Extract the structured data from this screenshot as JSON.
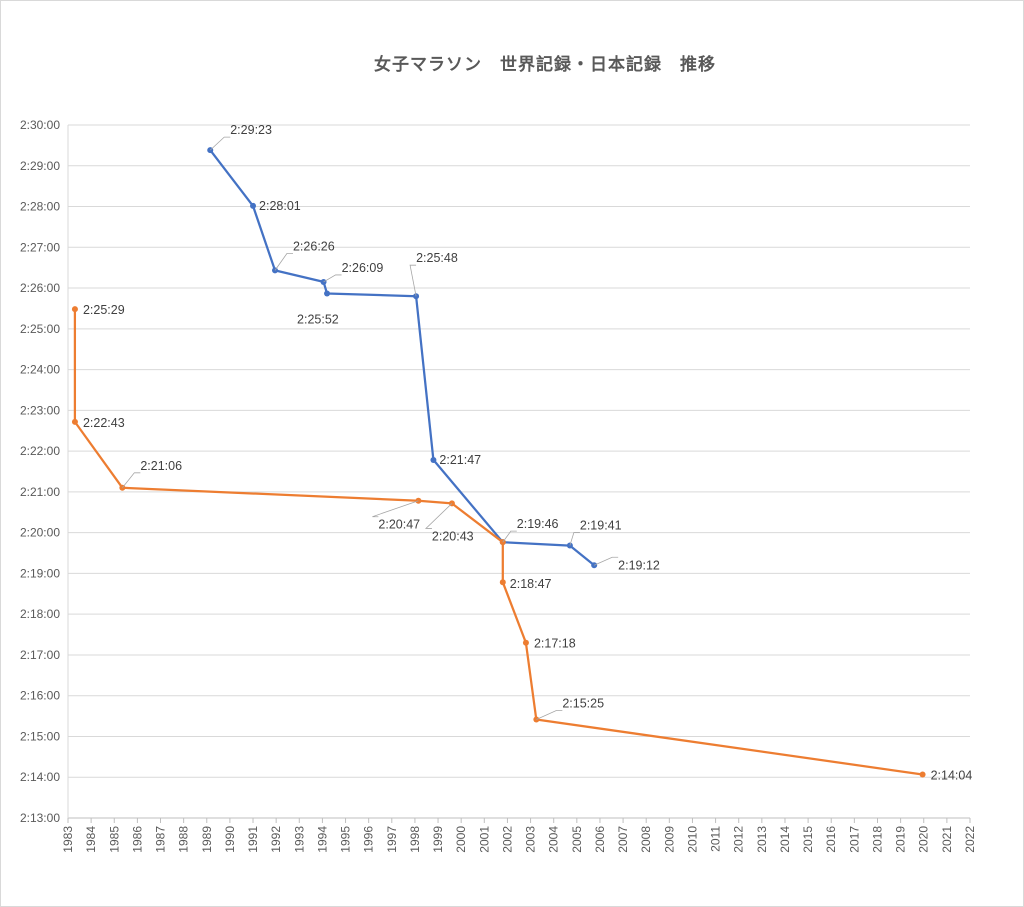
{
  "chart_data": {
    "type": "line",
    "title": "女子マラソン　世界記録・日本記録　推移",
    "xlabel": "",
    "ylabel": "",
    "x_ticks": [
      "1983",
      "1984",
      "1985",
      "1986",
      "1987",
      "1988",
      "1989",
      "1990",
      "1991",
      "1992",
      "1993",
      "1994",
      "1995",
      "1996",
      "1997",
      "1998",
      "1999",
      "2000",
      "2001",
      "2002",
      "2003",
      "2004",
      "2005",
      "2006",
      "2007",
      "2008",
      "2009",
      "2010",
      "2011",
      "2012",
      "2013",
      "2014",
      "2015",
      "2016",
      "2017",
      "2018",
      "2019",
      "2020",
      "2021",
      "2022"
    ],
    "y_ticks": [
      "2:13:00",
      "2:14:00",
      "2:15:00",
      "2:16:00",
      "2:17:00",
      "2:18:00",
      "2:19:00",
      "2:20:00",
      "2:21:00",
      "2:22:00",
      "2:23:00",
      "2:24:00",
      "2:25:00",
      "2:26:00",
      "2:27:00",
      "2:28:00",
      "2:29:00",
      "2:30:00"
    ],
    "ylim": [
      "2:13:00",
      "2:30:00"
    ],
    "grid": "horizontal",
    "legend": "none",
    "series": [
      {
        "color": "#4472c4",
        "points": [
          {
            "x": 1989.15,
            "y": "2:29:23"
          },
          {
            "x": 1991.0,
            "y": "2:28:01"
          },
          {
            "x": 1991.95,
            "y": "2:26:26"
          },
          {
            "x": 1994.05,
            "y": "2:26:09"
          },
          {
            "x": 1994.2,
            "y": "2:25:52"
          },
          {
            "x": 1998.05,
            "y": "2:25:48"
          },
          {
            "x": 1998.8,
            "y": "2:21:47"
          },
          {
            "x": 2001.8,
            "y": "2:19:46"
          },
          {
            "x": 2004.7,
            "y": "2:19:41"
          },
          {
            "x": 2005.75,
            "y": "2:19:12"
          }
        ]
      },
      {
        "color": "#ed7d31",
        "points": [
          {
            "x": 1983.3,
            "y": "2:25:29"
          },
          {
            "x": 1983.3,
            "y": "2:22:43"
          },
          {
            "x": 1985.35,
            "y": "2:21:06"
          },
          {
            "x": 1998.15,
            "y": "2:20:47"
          },
          {
            "x": 1999.6,
            "y": "2:20:43"
          },
          {
            "x": 2001.8,
            "y": "2:19:46"
          },
          {
            "x": 2001.8,
            "y": "2:18:47"
          },
          {
            "x": 2002.8,
            "y": "2:17:18"
          },
          {
            "x": 2003.25,
            "y": "2:15:25"
          },
          {
            "x": 2019.95,
            "y": "2:14:04"
          }
        ]
      }
    ],
    "data_labels": [
      {
        "text": "2:29:23"
      },
      {
        "text": "2:28:01"
      },
      {
        "text": "2:26:26"
      },
      {
        "text": "2:26:09"
      },
      {
        "text": "2:25:52"
      },
      {
        "text": "2:25:48"
      },
      {
        "text": "2:21:47"
      },
      {
        "text": "2:19:41"
      },
      {
        "text": "2:19:12"
      },
      {
        "text": "2:25:29"
      },
      {
        "text": "2:22:43"
      },
      {
        "text": "2:21:06"
      },
      {
        "text": "2:20:47"
      },
      {
        "text": "2:20:43"
      },
      {
        "text": "2:19:46"
      },
      {
        "text": "2:18:47"
      },
      {
        "text": "2:17:18"
      },
      {
        "text": "2:15:25"
      },
      {
        "text": "2:14:04"
      }
    ]
  }
}
